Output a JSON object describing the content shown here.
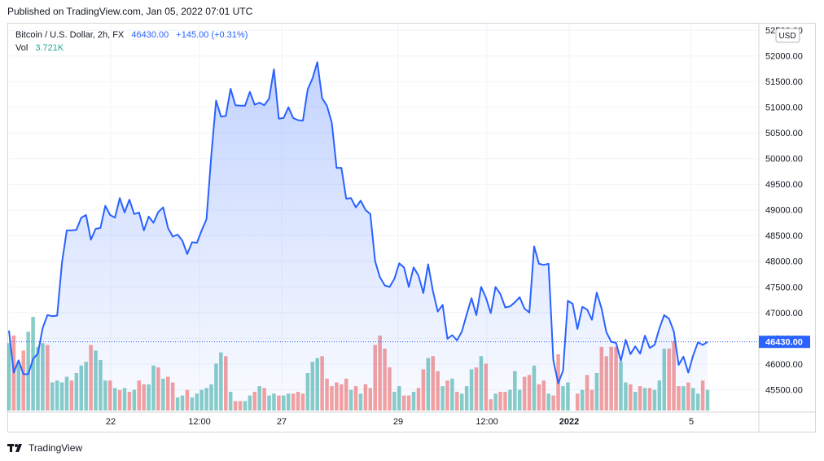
{
  "header": {
    "published": "Published on TradingView.com, Jan 05, 2022 07:01 UTC"
  },
  "footer": {
    "brand": "TradingView"
  },
  "colors": {
    "line": "#2962ff",
    "up": "#26a69a",
    "down": "#ef5350",
    "grid": "#f0f3fa"
  },
  "chart_data": {
    "type": "area",
    "legend": {
      "symbol": "Bitcoin / U.S. Dollar, 2h, FX",
      "price": "46430.00",
      "change": "+145.00 (+0.31%)",
      "vol_label": "Vol",
      "vol_value": "3.721K"
    },
    "currency": "USD",
    "last_price_label": "46430.00",
    "last_price": 46430,
    "y_ticks": [
      "52500.00",
      "52000.00",
      "51500.00",
      "51000.00",
      "50500.00",
      "50000.00",
      "49500.00",
      "49000.00",
      "48500.00",
      "48000.00",
      "47500.00",
      "47000.00",
      "46500.00",
      "46000.00",
      "45500.00"
    ],
    "x_ticks": [
      "22",
      "12:00",
      "27",
      "29",
      "12:00",
      "2022",
      "5"
    ],
    "price_series": [
      46650,
      45830,
      46070,
      45800,
      45800,
      46100,
      46200,
      46700,
      46950,
      46930,
      46940,
      47970,
      48600,
      48600,
      48610,
      48850,
      48900,
      48420,
      48630,
      48650,
      49080,
      48900,
      48850,
      49230,
      48950,
      49200,
      48920,
      48950,
      48600,
      48870,
      48750,
      48960,
      49050,
      48650,
      48480,
      48520,
      48400,
      48140,
      48370,
      48360,
      48600,
      48820,
      50060,
      51130,
      50820,
      50830,
      51360,
      51040,
      51030,
      51030,
      51300,
      51050,
      51090,
      51040,
      51170,
      51740,
      50780,
      50790,
      51000,
      50790,
      50750,
      50740,
      51350,
      51560,
      51880,
      51180,
      51030,
      50700,
      49820,
      49820,
      49220,
      49230,
      49050,
      49180,
      49000,
      48920,
      48000,
      47690,
      47530,
      47500,
      47660,
      47960,
      47880,
      47500,
      47880,
      47720,
      47380,
      47940,
      47420,
      47020,
      47150,
      46490,
      46560,
      46460,
      46630,
      46960,
      47280,
      46950,
      47500,
      47290,
      46990,
      47500,
      47360,
      47100,
      47120,
      47200,
      47300,
      47080,
      47000,
      48290,
      47950,
      47930,
      47950,
      46070,
      45620,
      45870,
      47230,
      47170,
      46680,
      47110,
      47060,
      46860,
      47390,
      47080,
      46620,
      46430,
      46410,
      46060,
      46470,
      46190,
      46340,
      46200,
      46550,
      46310,
      46370,
      46690,
      46950,
      46880,
      46630,
      45980,
      46140,
      45830,
      46160,
      46420,
      46370,
      46430
    ],
    "volume_series": [
      36,
      40,
      26,
      32,
      42,
      50,
      34,
      36,
      35,
      15,
      16,
      15,
      18,
      16,
      20,
      24,
      26,
      35,
      32,
      27,
      16,
      16,
      12,
      11,
      12,
      10,
      11,
      16,
      14,
      14,
      24,
      23,
      17,
      18,
      15,
      7,
      8,
      11,
      7,
      9,
      11,
      12,
      14,
      25,
      31,
      29,
      10,
      5,
      5,
      5,
      8,
      10,
      13,
      12,
      8,
      9,
      8,
      8,
      9,
      9,
      10,
      9,
      20,
      26,
      28,
      29,
      17,
      13,
      15,
      14,
      17,
      11,
      13,
      9,
      14,
      12,
      35,
      40,
      33,
      23,
      10,
      13,
      8,
      8,
      10,
      12,
      22,
      28,
      29,
      21,
      13,
      16,
      17,
      10,
      9,
      13,
      22,
      23,
      29,
      25,
      6,
      9,
      10,
      10,
      11,
      21,
      11,
      18,
      19,
      24,
      14,
      16,
      9,
      8,
      30,
      13,
      15,
      0,
      9,
      11,
      19,
      11,
      20,
      34,
      29,
      34,
      34,
      26,
      15,
      14,
      10,
      13,
      12,
      12,
      11,
      16,
      33,
      33,
      37,
      13,
      13,
      15,
      12,
      9,
      16,
      11
    ],
    "volume_up": [
      1,
      0,
      1,
      0,
      1,
      1,
      1,
      1,
      0,
      1,
      1,
      1,
      1,
      0,
      1,
      1,
      1,
      0,
      1,
      1,
      1,
      0,
      1,
      0,
      1,
      0,
      1,
      0,
      0,
      1,
      1,
      0,
      1,
      0,
      0,
      1,
      1,
      0,
      1,
      1,
      1,
      1,
      1,
      1,
      1,
      0,
      1,
      0,
      0,
      1,
      1,
      0,
      1,
      0,
      1,
      1,
      0,
      1,
      1,
      0,
      0,
      0,
      1,
      1,
      1,
      0,
      0,
      0,
      0,
      0,
      0,
      1,
      0,
      1,
      0,
      0,
      0,
      0,
      0,
      0,
      1,
      1,
      0,
      0,
      1,
      0,
      0,
      1,
      0,
      0,
      1,
      0,
      1,
      0,
      1,
      1,
      1,
      0,
      1,
      0,
      0,
      1,
      0,
      0,
      1,
      1,
      1,
      0,
      0,
      1,
      0,
      0,
      1,
      0,
      0,
      1,
      1,
      0,
      0,
      1,
      0,
      0,
      1,
      0,
      0,
      0,
      0,
      1,
      1,
      0,
      1,
      0,
      1,
      0,
      1,
      1,
      1,
      0,
      0,
      0,
      1,
      0,
      1,
      1,
      0,
      1
    ],
    "y_range": [
      45060,
      52630
    ]
  }
}
